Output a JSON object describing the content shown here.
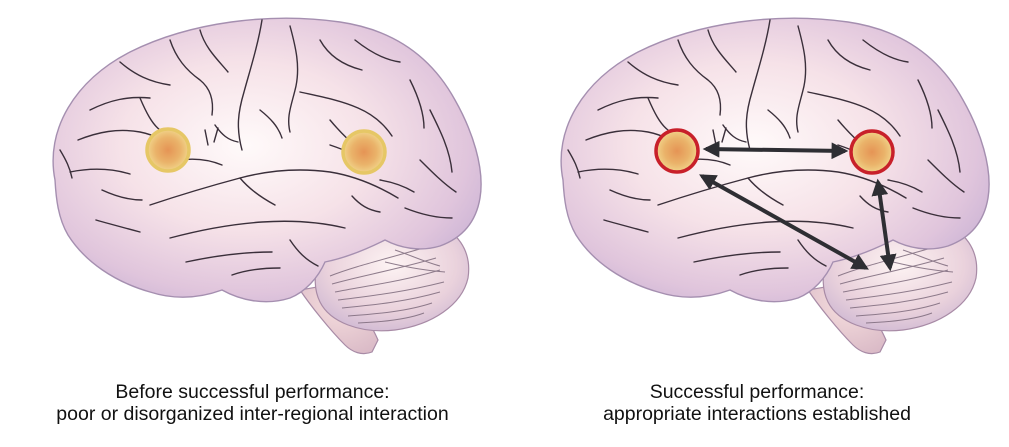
{
  "panels": [
    {
      "caption_line1": "Before successful performance:",
      "caption_line2": "poor or disorganized inter-regional interaction",
      "state": "before"
    },
    {
      "caption_line1": "Successful performance:",
      "caption_line2": "appropriate interactions established",
      "state": "after"
    }
  ],
  "colors": {
    "brain_light": "#fbeef0",
    "brain_mid": "#e3c6d8",
    "brain_shadow": "#b9a2c9",
    "sulcus": "#3a2f3a",
    "node_fill_center": "#e8a25c",
    "node_fill_edge": "#f1d48a",
    "node_ring_inactive": "#e6c766",
    "node_ring_active": "#c8202a",
    "arrow": "#2e2e33"
  },
  "icons": [
    "brain-illustration",
    "active-region-node",
    "bidirectional-arrow"
  ]
}
